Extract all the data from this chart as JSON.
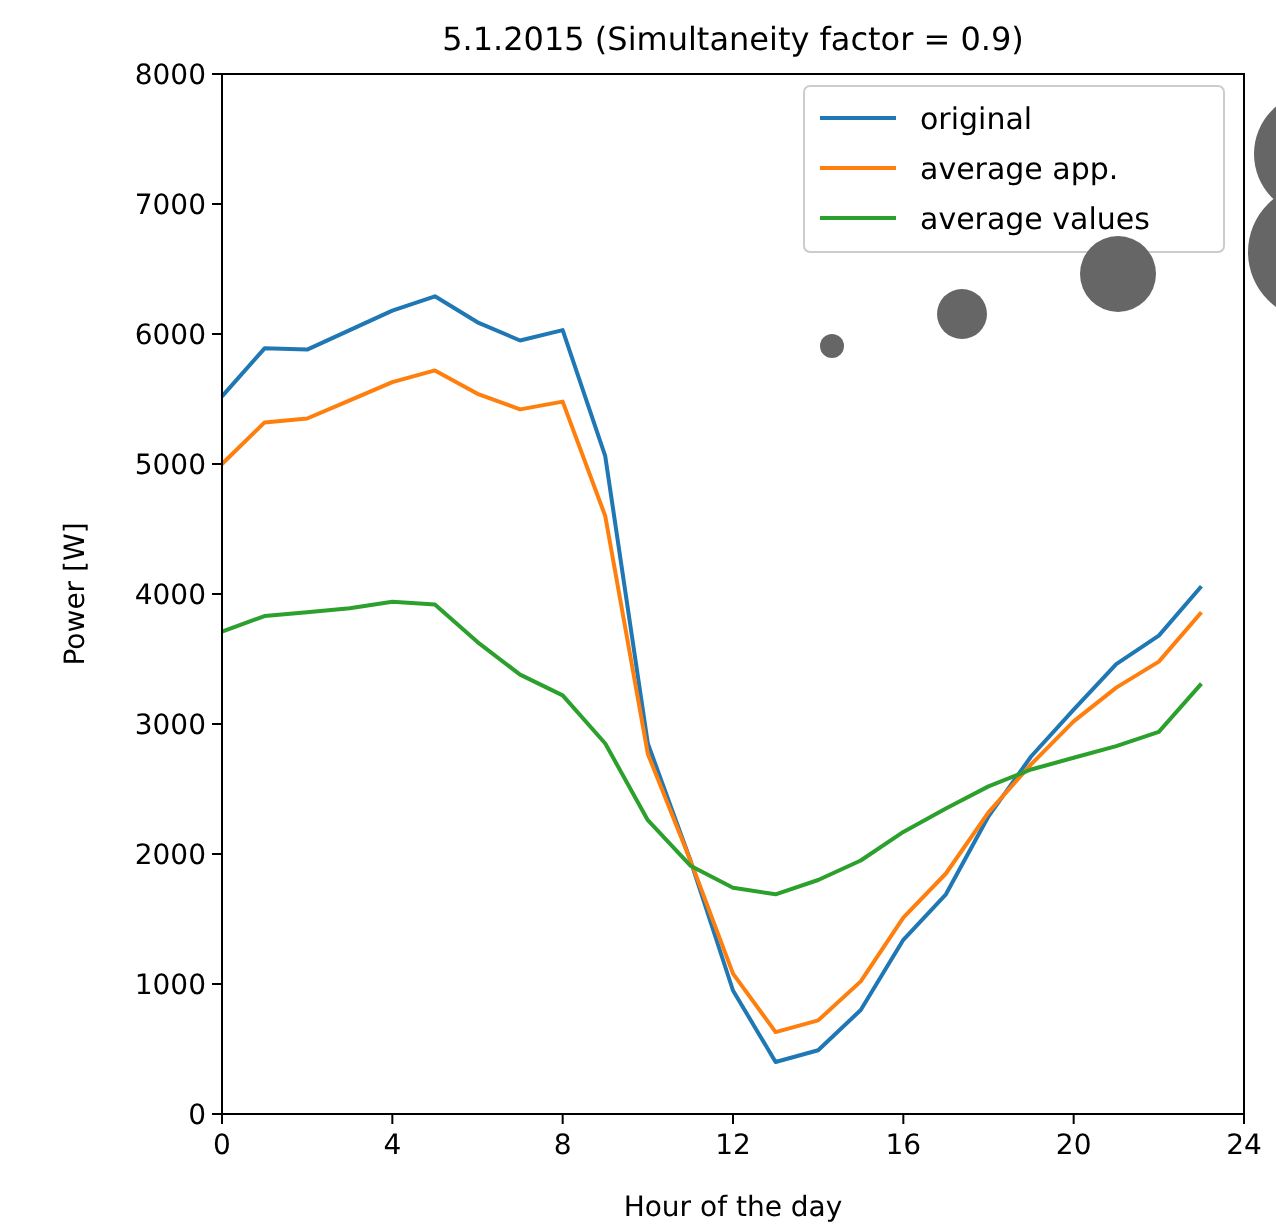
{
  "chart_data": {
    "type": "line",
    "title": "5.1.2015 (Simultaneity factor = 0.9)",
    "xlabel": "Hour of the day",
    "ylabel": "Power [W]",
    "x": [
      0,
      1,
      2,
      3,
      4,
      5,
      6,
      7,
      8,
      9,
      10,
      11,
      12,
      13,
      14,
      15,
      16,
      17,
      18,
      19,
      20,
      21,
      22,
      23
    ],
    "series": [
      {
        "name": "original",
        "color": "#1f77b4",
        "values": [
          5520,
          5890,
          5880,
          6030,
          6180,
          6290,
          6090,
          5950,
          6030,
          5060,
          2850,
          1950,
          950,
          400,
          490,
          800,
          1340,
          1690,
          2290,
          2750,
          3110,
          3460,
          3680,
          4060
        ]
      },
      {
        "name": "average app.",
        "color": "#ff7f0e",
        "values": [
          5000,
          5320,
          5350,
          5490,
          5630,
          5720,
          5540,
          5420,
          5480,
          4600,
          2770,
          1950,
          1080,
          630,
          720,
          1020,
          1510,
          1850,
          2320,
          2690,
          3020,
          3280,
          3480,
          3860
        ]
      },
      {
        "name": "average values",
        "color": "#2ca02c",
        "values": [
          3710,
          3830,
          3860,
          3890,
          3940,
          3920,
          3630,
          3380,
          3220,
          2850,
          2260,
          1910,
          1740,
          1690,
          1800,
          1950,
          2170,
          2350,
          2520,
          2650,
          2740,
          2830,
          2940,
          3310
        ]
      }
    ],
    "xlim": [
      0,
      24
    ],
    "xticks": [
      0,
      4,
      8,
      12,
      16,
      20,
      24
    ],
    "ylim": [
      0,
      8000
    ],
    "yticks": [
      0,
      1000,
      2000,
      3000,
      4000,
      5000,
      6000,
      7000,
      8000
    ],
    "grid": false,
    "legend": "top right"
  }
}
